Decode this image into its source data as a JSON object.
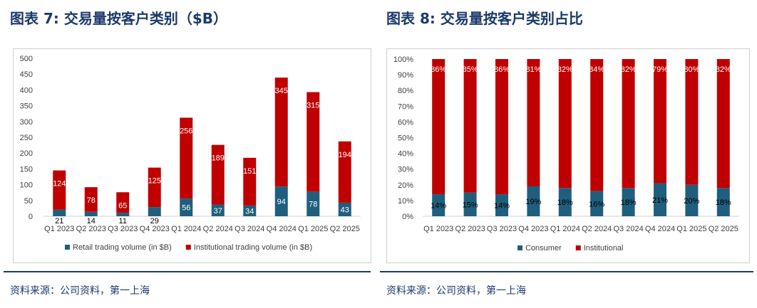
{
  "left": {
    "title": "图表 7: 交易量按客户类别（$B）",
    "source": "资料来源：公司资料，第一上海"
  },
  "right": {
    "title": "图表 8: 交易量按客户类别占比",
    "source": "资料来源：公司资料，第一上海"
  },
  "colors": {
    "retail": "#1f5f7d",
    "institutional": "#c00000",
    "title": "#1b3a6b",
    "rule": "#1b3a6b"
  },
  "chart_data": [
    {
      "type": "bar",
      "stacked": true,
      "categories": [
        "Q1 2023",
        "Q2 2023",
        "Q3 2023",
        "Q4 2023",
        "Q1 2024",
        "Q2 2024",
        "Q3 2024",
        "Q4 2024",
        "Q1 2025",
        "Q2 2025"
      ],
      "series": [
        {
          "name": "Retail trading volume (in $B)",
          "values": [
            21,
            14,
            11,
            29,
            56,
            37,
            34,
            94,
            78,
            43
          ],
          "color": "#1f5f7d"
        },
        {
          "name": "Institutional trading volume (in $B)",
          "values": [
            124,
            78,
            65,
            125,
            256,
            189,
            151,
            345,
            315,
            194
          ],
          "color": "#c00000"
        }
      ],
      "yticks": [
        "0",
        "50",
        "100",
        "150",
        "200",
        "250",
        "300",
        "350",
        "400",
        "450",
        "500"
      ],
      "ylim": [
        0,
        500
      ],
      "legend": "bottom",
      "grid": false
    },
    {
      "type": "bar",
      "stacked": true,
      "percent": true,
      "categories": [
        "Q1 2023",
        "Q2 2023",
        "Q3 2023",
        "Q4 2023",
        "Q1 2024",
        "Q2 2024",
        "Q3 2024",
        "Q4 2024",
        "Q1 2025",
        "Q2 2025"
      ],
      "series": [
        {
          "name": "Consumer",
          "values": [
            14,
            15,
            14,
            19,
            18,
            16,
            18,
            21,
            20,
            18
          ],
          "labels": [
            "14%",
            "15%",
            "14%",
            "19%",
            "18%",
            "16%",
            "18%",
            "21%",
            "20%",
            "18%"
          ],
          "color": "#1f5f7d"
        },
        {
          "name": "Institutional",
          "values": [
            86,
            85,
            86,
            81,
            82,
            84,
            82,
            79,
            80,
            82
          ],
          "labels": [
            "86%",
            "85%",
            "86%",
            "81%",
            "82%",
            "84%",
            "82%",
            "79%",
            "80%",
            "82%"
          ],
          "color": "#c00000"
        }
      ],
      "yticks": [
        "0%",
        "10%",
        "20%",
        "30%",
        "40%",
        "50%",
        "60%",
        "70%",
        "80%",
        "90%",
        "100%"
      ],
      "ylim": [
        0,
        100
      ],
      "legend": "bottom",
      "grid": false
    }
  ]
}
